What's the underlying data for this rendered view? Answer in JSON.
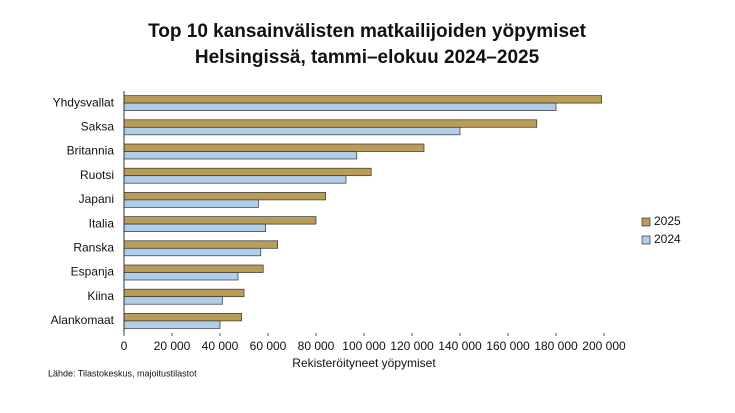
{
  "chart_data": {
    "type": "hbar",
    "title": [
      "Top 10 kansainvälisten matkailijoiden yöpymiset",
      "Helsingissä, tammi–elokuu 2024–2025"
    ],
    "xlabel": "Rekisteröityneet yöpymiset",
    "source": "Lähde: Tilastokeskus, majoitustilastot",
    "categories": [
      "Yhdysvallat",
      "Saksa",
      "Britannia",
      "Ruotsi",
      "Japani",
      "Italia",
      "Ranska",
      "Espanja",
      "Kiina",
      "Alankomaat"
    ],
    "series": [
      {
        "name": "2025",
        "color": "#b89c57",
        "values": [
          199000,
          172000,
          125000,
          103000,
          84000,
          80000,
          64000,
          58000,
          50000,
          49000
        ]
      },
      {
        "name": "2024",
        "color": "#b0cde9",
        "values": [
          180000,
          140000,
          97000,
          92500,
          56000,
          59000,
          57000,
          47500,
          41000,
          40000
        ]
      }
    ],
    "xlim": [
      0,
      200000
    ],
    "xticks": [
      0,
      {
        "value": 20000,
        "label": "20 000"
      },
      {
        "value": 40000,
        "label": "40 000"
      },
      {
        "value": 60000,
        "label": "60 000"
      },
      {
        "value": 80000,
        "label": "80 000"
      },
      {
        "value": 100000,
        "label": "100 000"
      },
      {
        "value": 120000,
        "label": "120 000"
      },
      {
        "value": 140000,
        "label": "140 000"
      },
      {
        "value": 160000,
        "label": "160 000"
      },
      {
        "value": 180000,
        "label": "180 000"
      },
      {
        "value": 200000,
        "label": "200 000"
      }
    ],
    "legend": "right"
  }
}
